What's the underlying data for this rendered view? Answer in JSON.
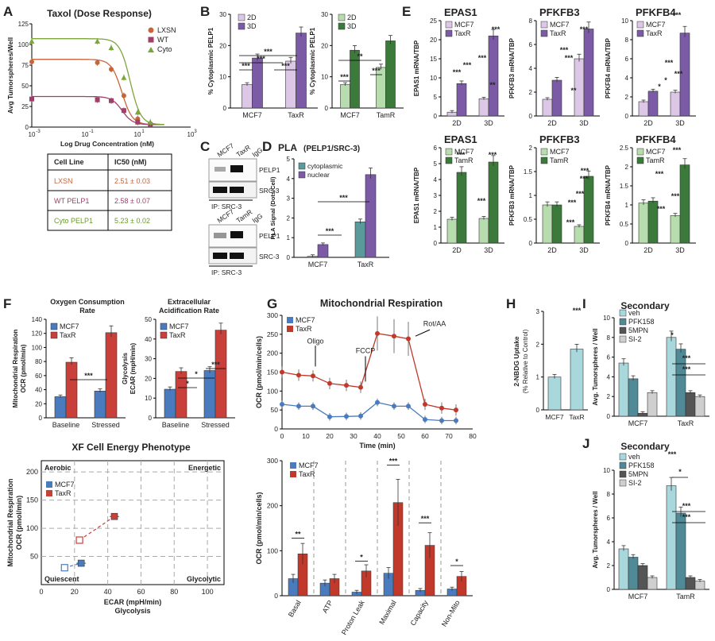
{
  "colors": {
    "purple_light": "#dcc7e6",
    "purple_dark": "#7b5aa6",
    "green_light": "#b7dcae",
    "green_dark": "#3b7a3a",
    "blue": "#4a7bbf",
    "red": "#c9403a",
    "orange": "#c8643a",
    "maroon": "#a0406a",
    "olive": "#7ba63a",
    "teal": "#5a9a9a",
    "cyan_light": "#a8d8dc",
    "teal_dark": "#4f8a96",
    "gray_dark": "#555555",
    "gray_light": "#cfcfcf",
    "mito_blue": "#4a7bbf",
    "mito_red": "#c0392b"
  },
  "panel_letters": {
    "A": "A",
    "B": "B",
    "C": "C",
    "D": "D",
    "E": "E",
    "F": "F",
    "G": "G",
    "H": "H",
    "I": "I",
    "J": "J"
  },
  "sig": {
    "s1": "*",
    "s2": "**",
    "s3": "***"
  },
  "panelA": {
    "chart_data": {
      "type": "line",
      "title": "Taxol (Dose Response)",
      "xlabel": "Log Drug Concentration (nM)",
      "ylabel": "Avg Tumorspheres/Well",
      "xticks": [
        "10",
        "10",
        "10",
        "10"
      ],
      "xtick_exp": [
        "-3",
        "-1",
        "1",
        "3"
      ],
      "yticks": [
        "0",
        "25",
        "50",
        "75",
        "100",
        "125"
      ],
      "ylim": [
        0,
        125
      ],
      "series": [
        {
          "name": "LXSN",
          "top": 79,
          "ic50": 2.51,
          "points": [
            [
              0.001,
              79
            ],
            [
              0.3,
              78
            ],
            [
              1,
              70
            ],
            [
              3,
              38
            ],
            [
              10,
              10
            ],
            [
              30,
              4
            ]
          ]
        },
        {
          "name": "WT",
          "top": 34,
          "ic50": 2.58,
          "points": [
            [
              0.001,
              34
            ],
            [
              0.3,
              33
            ],
            [
              1,
              32
            ],
            [
              3,
              20
            ],
            [
              10,
              6
            ],
            [
              30,
              3
            ]
          ]
        },
        {
          "name": "Cyto",
          "top": 104,
          "ic50": 5.23,
          "points": [
            [
              0.001,
              104
            ],
            [
              0.3,
              104
            ],
            [
              1,
              96
            ],
            [
              3,
              60
            ],
            [
              10,
              18
            ],
            [
              30,
              6
            ]
          ]
        }
      ]
    },
    "table": {
      "headers": [
        "Cell Line",
        "IC50 (nM)"
      ],
      "rows": [
        [
          "LXSN",
          "2.51 ± 0.03"
        ],
        [
          "WT PELP1",
          "2.58 ± 0.07"
        ],
        [
          "Cyto PELP1",
          "5.23 ± 0.02"
        ]
      ]
    }
  },
  "panelB": {
    "chart_data": [
      {
        "type": "bar",
        "ylabel": "% Cytoplasmic PELP1",
        "categories": [
          "MCF7",
          "TaxR"
        ],
        "yticks": [
          "0",
          "10",
          "20",
          "30"
        ],
        "ylim": [
          0,
          30
        ],
        "legend": [
          "2D",
          "3D"
        ],
        "series": [
          {
            "name": "2D",
            "values": [
              7.5,
              15
            ]
          },
          {
            "name": "3D",
            "values": [
              16,
              24
            ]
          }
        ]
      },
      {
        "type": "bar",
        "ylabel": "% Cytoplasmic PELP1",
        "categories": [
          "MCF7",
          "TamR"
        ],
        "yticks": [
          "0",
          "10",
          "20",
          "30"
        ],
        "ylim": [
          0,
          30
        ],
        "legend": [
          "2D",
          "3D"
        ],
        "series": [
          {
            "name": "2D",
            "values": [
              7.5,
              13
            ]
          },
          {
            "name": "3D",
            "values": [
              18.5,
              21.5
            ]
          }
        ]
      }
    ]
  },
  "panelC": {
    "lanes1": [
      "MCF7",
      "TaxR",
      "IgG"
    ],
    "lanes2": [
      "MCF7",
      "TamR",
      "IgG"
    ],
    "bands": [
      "PELP1",
      "SRC-3"
    ],
    "ip": "IP: SRC-3"
  },
  "panelD": {
    "chart_data": {
      "type": "bar",
      "title": "PLA",
      "subtitle": "(PELP1/SRC-3)",
      "ylabel": "PLA Signal (Dots/Cell)",
      "categories": [
        "MCF7",
        "TaxR"
      ],
      "yticks": [
        "0",
        "1",
        "2",
        "3",
        "4",
        "5"
      ],
      "ylim": [
        0,
        5
      ],
      "legend": [
        "cytoplasmic",
        "nuclear"
      ],
      "series": [
        {
          "name": "cytoplasmic",
          "values": [
            0.05,
            1.8
          ]
        },
        {
          "name": "nuclear",
          "values": [
            0.65,
            4.2
          ]
        }
      ]
    }
  },
  "panelE": {
    "chart_data": [
      {
        "type": "bar",
        "title": "EPAS1",
        "ylabel": "EPAS1 mRNA/TBP",
        "categories": [
          "2D",
          "3D"
        ],
        "yticks": [
          "0",
          "5",
          "10",
          "15",
          "20",
          "25"
        ],
        "ylim": [
          0,
          25
        ],
        "legend": [
          "MCF7",
          "TaxR"
        ],
        "series": [
          {
            "name": "MCF7",
            "values": [
              1,
              4.5
            ]
          },
          {
            "name": "TaxR",
            "values": [
              8.5,
              21
            ]
          }
        ]
      },
      {
        "type": "bar",
        "title": "PFKFB3",
        "ylabel": "PFKFB3 mRNA/TBP",
        "categories": [
          "2D",
          "3D"
        ],
        "yticks": [
          "0",
          "2",
          "4",
          "6",
          "8"
        ],
        "ylim": [
          0,
          8
        ],
        "legend": [
          "MCF7",
          "TaxR"
        ],
        "series": [
          {
            "name": "MCF7",
            "values": [
              1.4,
              4.8
            ]
          },
          {
            "name": "TaxR",
            "values": [
              3,
              7.3
            ]
          }
        ]
      },
      {
        "type": "bar",
        "title": "PFKFB4",
        "ylabel": "PFKFB4 mRNA/TBP",
        "categories": [
          "2D",
          "3D"
        ],
        "yticks": [
          "0",
          "2",
          "4",
          "6",
          "8",
          "10"
        ],
        "ylim": [
          0,
          10
        ],
        "legend": [
          "MCF7",
          "TaxR"
        ],
        "series": [
          {
            "name": "MCF7",
            "values": [
              1.5,
              2.5
            ]
          },
          {
            "name": "TaxR",
            "values": [
              2.6,
              8.7
            ]
          }
        ]
      },
      {
        "type": "bar",
        "title": "EPAS1",
        "ylabel": "EPAS1 mRNA/TBP",
        "categories": [
          "2D",
          "3D"
        ],
        "yticks": [
          "0",
          "1",
          "2",
          "3",
          "4",
          "5",
          "6"
        ],
        "ylim": [
          0,
          6
        ],
        "legend": [
          "MCF7",
          "TamR"
        ],
        "series": [
          {
            "name": "MCF7",
            "values": [
              1.5,
              1.55
            ]
          },
          {
            "name": "TamR",
            "values": [
              4.45,
              5.1
            ]
          }
        ]
      },
      {
        "type": "bar",
        "title": "PFKFB3",
        "ylabel": "PFKFB3 mRNA/TBP",
        "categories": [
          "2D",
          "3D"
        ],
        "yticks": [
          "0",
          "0.5",
          "1",
          "1.5",
          "2"
        ],
        "ylim": [
          0,
          2
        ],
        "legend": [
          "MCF7",
          "TamR"
        ],
        "series": [
          {
            "name": "MCF7",
            "values": [
              0.8,
              0.35
            ]
          },
          {
            "name": "TamR",
            "values": [
              0.8,
              1.4
            ]
          }
        ]
      },
      {
        "type": "bar",
        "title": "PFKFB4",
        "ylabel": "PFKFB4 mRNA/TBP",
        "categories": [
          "2D",
          "3D"
        ],
        "yticks": [
          "0",
          "0.5",
          "1",
          "1.5",
          "2",
          "2.5"
        ],
        "ylim": [
          0,
          2.5
        ],
        "legend": [
          "MCF7",
          "TamR"
        ],
        "series": [
          {
            "name": "MCF7",
            "values": [
              1.05,
              0.72
            ]
          },
          {
            "name": "TamR",
            "values": [
              1.1,
              2.05
            ]
          }
        ]
      }
    ]
  },
  "panelF": {
    "chart_data": [
      {
        "type": "bar",
        "title": "Oxygen Consumption",
        "title2": "Rate",
        "ylabel": "Mitochondrial Respiration",
        "ylabel2": "OCR (pmol/min)",
        "categories": [
          "Baseline",
          "Stressed"
        ],
        "yticks": [
          "0",
          "20",
          "40",
          "60",
          "80",
          "100",
          "120",
          "140"
        ],
        "ylim": [
          0,
          140
        ],
        "legend": [
          "MCF7",
          "TaxR"
        ],
        "series": [
          {
            "name": "MCF7",
            "values": [
              30,
              38
            ]
          },
          {
            "name": "TaxR",
            "values": [
              79,
              121
            ]
          }
        ]
      },
      {
        "type": "bar",
        "title": "Extracellular",
        "title2": "Acidification Rate",
        "ylabel": "Glycolysis",
        "ylabel2": "ECAR (mpH/min)",
        "categories": [
          "Baseline",
          "Stressed"
        ],
        "yticks": [
          "0",
          "10",
          "20",
          "30",
          "40",
          "50"
        ],
        "ylim": [
          0,
          50
        ],
        "legend": [
          "MCF7",
          "TaxR"
        ],
        "series": [
          {
            "name": "MCF7",
            "values": [
              14.5,
              24
            ]
          },
          {
            "name": "TaxR",
            "values": [
              23.5,
              44.5
            ]
          }
        ]
      }
    ],
    "phenotype": {
      "type": "scatter",
      "title": "XF Cell Energy Phenotype",
      "xlabel": "ECAR (mpH/min)",
      "xlabel2": "Glycolysis",
      "ylabel": "Mitochondrial Respiration",
      "ylabel2": "OCR (pmol/min)",
      "xticks": [
        "0",
        "20",
        "40",
        "60",
        "80",
        "100"
      ],
      "yticks": [
        "50",
        "100",
        "150",
        "200"
      ],
      "xlim": [
        0,
        110
      ],
      "ylim": [
        0,
        220
      ],
      "quadrants": [
        "Aerobic",
        "Energetic",
        "Quiescent",
        "Glycolytic"
      ],
      "legend": [
        "MCF7",
        "TaxR"
      ],
      "series": [
        {
          "name": "MCF7",
          "baseline": [
            14,
            30
          ],
          "stressed": [
            24,
            38
          ]
        },
        {
          "name": "TaxR",
          "baseline": [
            23,
            79
          ],
          "stressed": [
            44,
            121
          ]
        }
      ]
    }
  },
  "panelG": {
    "chart_data": [
      {
        "type": "line",
        "title": "Mitochondrial Respiration",
        "xlabel": "Time (min)",
        "ylabel": "OCR (pmol/min/cells)",
        "xticks": [
          "0",
          "10",
          "20",
          "30",
          "40",
          "50",
          "60",
          "70",
          "80"
        ],
        "yticks": [
          "0",
          "50",
          "100",
          "150",
          "200",
          "250",
          "300"
        ],
        "xlim": [
          0,
          80
        ],
        "ylim": [
          0,
          300
        ],
        "annotations": [
          "Oligo",
          "FCCP",
          "Rot/AA"
        ],
        "legend": [
          "MCF7",
          "TaxR"
        ],
        "series": [
          {
            "name": "MCF7",
            "x": [
              0,
              7,
              13,
              20,
              27,
              33,
              40,
              47,
              53,
              60,
              67,
              73
            ],
            "y": [
              65,
              60,
              60,
              32,
              33,
              34,
              70,
              60,
              60,
              25,
              22,
              22
            ]
          },
          {
            "name": "TaxR",
            "x": [
              0,
              7,
              13,
              20,
              27,
              33,
              40,
              47,
              53,
              60,
              67,
              73
            ],
            "y": [
              150,
              142,
              140,
              120,
              115,
              110,
              252,
              245,
              238,
              65,
              55,
              50
            ]
          }
        ]
      },
      {
        "type": "bar",
        "ylabel": "OCR (pmol/min/cells)",
        "categories": [
          "Basal",
          "ATP",
          "Proton Leak",
          "Maximal",
          "Capacity",
          "Non-Mito"
        ],
        "yticks": [
          "0",
          "100",
          "200",
          "300"
        ],
        "ylim": [
          0,
          300
        ],
        "legend": [
          "MCF7",
          "TaxR"
        ],
        "series": [
          {
            "name": "MCF7",
            "values": [
              38,
              28,
              8,
              50,
              12,
              15
            ]
          },
          {
            "name": "TaxR",
            "values": [
              93,
              38,
              55,
              207,
              112,
              43
            ]
          }
        ]
      }
    ]
  },
  "panelH": {
    "chart_data": {
      "type": "bar",
      "title": "2-NBDG Uptake",
      "subtitle": "(% Relative to Control)",
      "categories": [
        "MCF7",
        "TaxR"
      ],
      "yticks": [
        "0",
        "1",
        "2",
        "3"
      ],
      "ylim": [
        0,
        3
      ],
      "values": [
        1,
        1.85
      ]
    }
  },
  "panelI": {
    "chart_data": {
      "type": "bar",
      "title": "Secondary",
      "ylabel": "Avg. Tumorspheres / Well",
      "categories": [
        "MCF7",
        "TaxR"
      ],
      "yticks": [
        "0",
        "2",
        "4",
        "6",
        "8",
        "10"
      ],
      "ylim": [
        0,
        10
      ],
      "legend": [
        "veh",
        "PFK158",
        "5MPN",
        "SI-2"
      ],
      "series": [
        {
          "name": "veh",
          "values": [
            5.4,
            8
          ]
        },
        {
          "name": "PFK158",
          "values": [
            3.8,
            6.8
          ]
        },
        {
          "name": "5MPN",
          "values": [
            0.3,
            2.4
          ]
        },
        {
          "name": "SI-2",
          "values": [
            2.4,
            2
          ]
        }
      ]
    }
  },
  "panelJ": {
    "chart_data": {
      "type": "bar",
      "title": "Secondary",
      "ylabel": "Avg. Tumorspheres / Well",
      "categories": [
        "MCF7",
        "TamR"
      ],
      "yticks": [
        "0",
        "2",
        "4",
        "6",
        "8",
        "10"
      ],
      "ylim": [
        0,
        10
      ],
      "legend": [
        "veh",
        "PFK158",
        "5MPN",
        "SI-2"
      ],
      "series": [
        {
          "name": "veh",
          "values": [
            3.4,
            8.7
          ]
        },
        {
          "name": "PFK158",
          "values": [
            2.7,
            6.4
          ]
        },
        {
          "name": "5MPN",
          "values": [
            2,
            1
          ]
        },
        {
          "name": "SI-2",
          "values": [
            1,
            0.7
          ]
        }
      ]
    }
  }
}
